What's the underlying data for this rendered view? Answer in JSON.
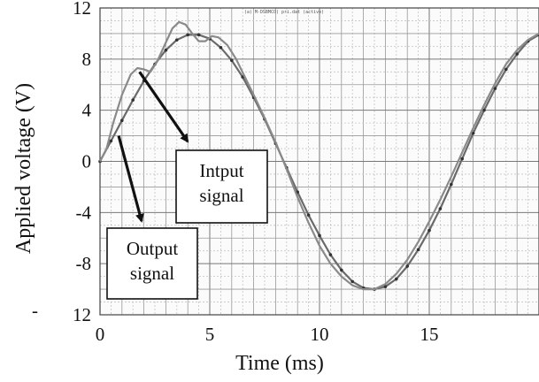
{
  "chart_data": {
    "type": "line",
    "title": "",
    "header_text": "(a) M-DSBMCO) pri.dat (active)",
    "xlabel": "Time (ms)",
    "ylabel": "Applied voltage (V)",
    "xlim": [
      0,
      20
    ],
    "ylim": [
      -12,
      12
    ],
    "x_ticks": [
      0,
      5,
      10,
      15
    ],
    "x_tick_labels": [
      "0",
      "5",
      "10",
      "15"
    ],
    "y_ticks": [
      12,
      8,
      4,
      0,
      -4,
      -8,
      -12
    ],
    "y_tick_labels": [
      "12",
      "8",
      "4",
      "0",
      "-4",
      "-8",
      "12"
    ],
    "y_tick_extra_dash": "-",
    "grid": true,
    "series": [
      {
        "name": "Intput signal",
        "color": "#6a6a6a",
        "markers": true,
        "x": [
          0,
          0.5,
          1.0,
          1.5,
          2.0,
          2.5,
          3.0,
          3.5,
          4.0,
          4.5,
          5.0,
          5.5,
          6.0,
          6.5,
          7.0,
          7.5,
          8.0,
          8.5,
          9.0,
          9.5,
          10.0,
          10.5,
          11.0,
          11.5,
          12.0,
          12.5,
          13.0,
          13.5,
          14.0,
          14.5,
          15.0,
          15.5,
          16.0,
          16.5,
          17.0,
          17.5,
          18.0,
          18.5,
          19.0,
          19.5,
          20.0
        ],
        "values": [
          0,
          1.6,
          3.2,
          4.8,
          6.3,
          7.6,
          8.7,
          9.5,
          9.9,
          9.9,
          9.6,
          8.9,
          7.9,
          6.6,
          5.0,
          3.3,
          1.4,
          -0.5,
          -2.4,
          -4.2,
          -5.8,
          -7.3,
          -8.5,
          -9.4,
          -9.9,
          -10.0,
          -9.8,
          -9.2,
          -8.2,
          -6.9,
          -5.4,
          -3.7,
          -1.8,
          0.2,
          2.2,
          4.0,
          5.7,
          7.2,
          8.4,
          9.4,
          9.9
        ]
      },
      {
        "name": "Output signal",
        "color": "#8a8a8a",
        "markers": false,
        "x": [
          0,
          0.3,
          0.6,
          1.0,
          1.4,
          1.7,
          2.0,
          2.3,
          2.6,
          3.0,
          3.3,
          3.6,
          3.9,
          4.2,
          4.5,
          4.8,
          5.1,
          5.4,
          5.8,
          6.2,
          6.6,
          7.0,
          7.5,
          8.0,
          8.5,
          9.0,
          9.5,
          10.0,
          10.5,
          11.0,
          11.5,
          12.0,
          12.5,
          13.0,
          13.5,
          14.0,
          14.5,
          15.0,
          15.5,
          16.0,
          16.5,
          17.0,
          17.5,
          18.0,
          18.5,
          19.0,
          19.5,
          20.0
        ],
        "values": [
          0,
          1.0,
          3.0,
          5.2,
          6.8,
          7.3,
          7.2,
          7.0,
          7.8,
          9.3,
          10.4,
          10.9,
          10.7,
          10.0,
          9.4,
          9.4,
          9.8,
          9.7,
          9.1,
          8.0,
          6.6,
          5.2,
          3.4,
          1.5,
          -0.6,
          -2.8,
          -4.8,
          -6.6,
          -8.0,
          -9.0,
          -9.7,
          -10.0,
          -10.0,
          -9.6,
          -8.8,
          -7.7,
          -6.3,
          -4.7,
          -3.0,
          -1.2,
          0.7,
          2.6,
          4.4,
          6.1,
          7.6,
          8.7,
          9.5,
          10.0
        ]
      }
    ],
    "annotations": [
      {
        "label_lines": [
          "Intput",
          "signal"
        ],
        "target": "Intput signal"
      },
      {
        "label_lines": [
          "Output",
          "signal"
        ],
        "target": "Output signal"
      }
    ]
  }
}
